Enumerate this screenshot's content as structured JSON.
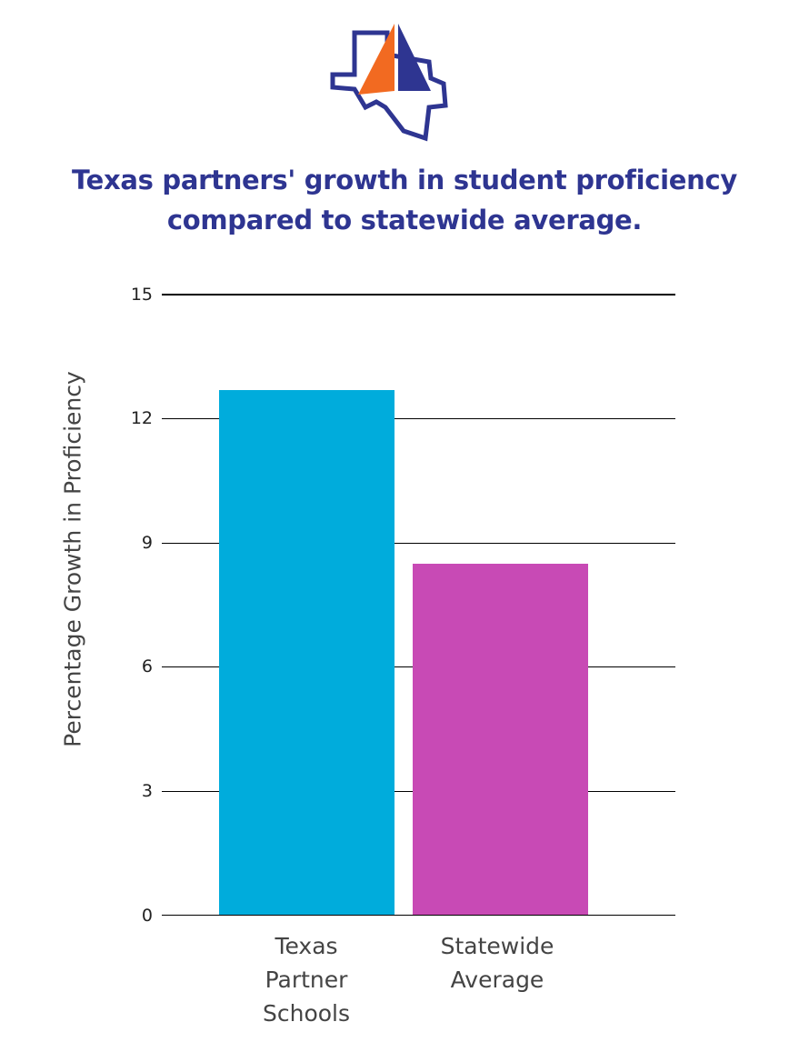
{
  "logo": {
    "icon": "texas-sail-logo-icon",
    "colors": {
      "outline": "#2e3591",
      "sail_left": "#f26a21",
      "sail_right": "#2e3591"
    }
  },
  "title": {
    "line1": "Texas partners' growth in student proficiency",
    "line2": "compared to statewide average."
  },
  "axis": {
    "ylabel": "Percentage Growth in Proficiency",
    "ticks": [
      "15",
      "12",
      "9",
      "6",
      "3",
      "0"
    ]
  },
  "bars": [
    {
      "label_lines": [
        "Texas",
        "Partner",
        "Schools"
      ],
      "value": 12.7,
      "color": "#00acdc"
    },
    {
      "label_lines": [
        "Statewide",
        "Average"
      ],
      "value": 8.5,
      "color": "#c84ab5"
    }
  ],
  "chart_data": {
    "type": "bar",
    "title": "Texas partners' growth in student proficiency compared to statewide average.",
    "categories": [
      "Texas Partner Schools",
      "Statewide Average"
    ],
    "values": [
      12.7,
      8.5
    ],
    "colors": [
      "#00acdc",
      "#c84ab5"
    ],
    "xlabel": "",
    "ylabel": "Percentage Growth in Proficiency",
    "ylim": [
      0,
      15
    ],
    "yticks": [
      0,
      3,
      6,
      9,
      12,
      15
    ],
    "grid": true,
    "legend": null
  }
}
